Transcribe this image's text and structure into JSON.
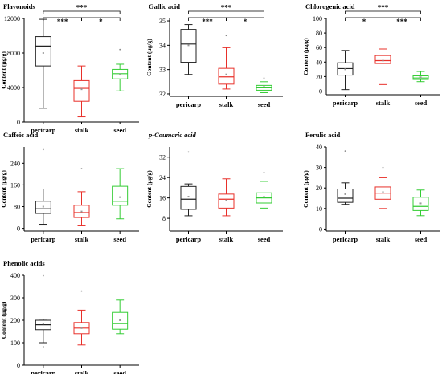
{
  "figure": {
    "y_axis_label": "Content (µg/g)"
  },
  "colors": {
    "pericarp": "#222222",
    "stalk": "#e8302a",
    "seed": "#33cc33"
  },
  "chart_data": [
    {
      "type": "box",
      "title": "Flavonoids",
      "categories": [
        "pericarp",
        "stalk",
        "seed"
      ],
      "ylabel": "Content (µg/g)",
      "ylim": [
        0,
        12000
      ],
      "yticks": [
        0,
        4000,
        8000,
        12000
      ],
      "boxes": [
        {
          "name": "pericarp",
          "min": 1600,
          "q1": 6500,
          "median": 8800,
          "q3": 9900,
          "max": 11900,
          "mean": 8000
        },
        {
          "name": "stalk",
          "min": 600,
          "q1": 2400,
          "median": 3900,
          "q3": 4800,
          "max": 6500,
          "mean": 3800
        },
        {
          "name": "seed",
          "min": 3600,
          "q1": 5000,
          "median": 5600,
          "q3": 6100,
          "max": 6700,
          "mean": 5500,
          "outliers": [
            8400
          ]
        }
      ],
      "significance": [
        {
          "from": "pericarp",
          "to": "seed",
          "label": "***"
        },
        {
          "from": "pericarp",
          "to": "stalk",
          "label": "***"
        },
        {
          "from": "stalk",
          "to": "seed",
          "label": "*"
        }
      ]
    },
    {
      "type": "box",
      "title": "Gallic acid",
      "categories": [
        "pericarp",
        "stalk",
        "seed"
      ],
      "ylabel": "Content (µg/g)",
      "ylim": [
        31.9,
        35.1
      ],
      "yticks": [
        32,
        33,
        34,
        35
      ],
      "boxes": [
        {
          "name": "pericarp",
          "min": 32.8,
          "q1": 33.3,
          "median": 34.05,
          "q3": 34.65,
          "max": 34.85,
          "mean": 34.0
        },
        {
          "name": "stalk",
          "min": 32.2,
          "q1": 32.4,
          "median": 32.7,
          "q3": 33.05,
          "max": 33.9,
          "mean": 32.8,
          "outliers": [
            34.4
          ]
        },
        {
          "name": "seed",
          "min": 32.05,
          "q1": 32.15,
          "median": 32.25,
          "q3": 32.35,
          "max": 32.5,
          "mean": 32.3,
          "outliers": [
            32.65
          ]
        }
      ],
      "significance": [
        {
          "from": "pericarp",
          "to": "seed",
          "label": "***"
        },
        {
          "from": "pericarp",
          "to": "stalk",
          "label": "***"
        },
        {
          "from": "stalk",
          "to": "seed",
          "label": "*"
        }
      ]
    },
    {
      "type": "box",
      "title": "Chlorogenic acid",
      "categories": [
        "pericarp",
        "stalk",
        "seed"
      ],
      "ylabel": "Content (µg/g)",
      "ylim": [
        -5,
        100
      ],
      "yticks": [
        0,
        20,
        40,
        60,
        80,
        100
      ],
      "boxes": [
        {
          "name": "pericarp",
          "min": 2,
          "q1": 22,
          "median": 31,
          "q3": 39,
          "max": 56,
          "mean": 30
        },
        {
          "name": "stalk",
          "min": 9,
          "q1": 38,
          "median": 42,
          "q3": 49,
          "max": 58,
          "mean": 42
        },
        {
          "name": "seed",
          "min": 13,
          "q1": 16,
          "median": 18,
          "q3": 21,
          "max": 27,
          "mean": 19
        }
      ],
      "significance": [
        {
          "from": "pericarp",
          "to": "seed",
          "label": "***"
        },
        {
          "from": "pericarp",
          "to": "stalk",
          "label": "*"
        },
        {
          "from": "stalk",
          "to": "seed",
          "label": "***"
        }
      ]
    },
    {
      "type": "box",
      "title": "Caffeic acid",
      "categories": [
        "pericarp",
        "stalk",
        "seed"
      ],
      "ylabel": "Content (µg/g)",
      "ylim": [
        -10,
        300
      ],
      "yticks": [
        0,
        80,
        160,
        240
      ],
      "boxes": [
        {
          "name": "pericarp",
          "min": 15,
          "q1": 55,
          "median": 72,
          "q3": 100,
          "max": 145,
          "mean": 80,
          "outliers": [
            290
          ]
        },
        {
          "name": "stalk",
          "min": 12,
          "q1": 40,
          "median": 58,
          "q3": 85,
          "max": 135,
          "mean": 62,
          "outliers": [
            220
          ]
        },
        {
          "name": "seed",
          "min": 35,
          "q1": 85,
          "median": 100,
          "q3": 155,
          "max": 220,
          "mean": 115
        }
      ],
      "significance": []
    },
    {
      "type": "box",
      "title": "p-Coumaric acid",
      "categories": [
        "pericarp",
        "stalk",
        "seed"
      ],
      "ylabel": "Content (µg/g)",
      "ylim": [
        3,
        36
      ],
      "yticks": [
        8,
        16,
        24,
        32
      ],
      "boxes": [
        {
          "name": "pericarp",
          "min": 9,
          "q1": 11.5,
          "median": 15.5,
          "q3": 20.5,
          "max": 21.5,
          "mean": 16.5,
          "outliers": [
            34
          ]
        },
        {
          "name": "stalk",
          "min": 9,
          "q1": 12,
          "median": 15.5,
          "q3": 17.5,
          "max": 23.5,
          "mean": 15
        },
        {
          "name": "seed",
          "min": 12,
          "q1": 14,
          "median": 16,
          "q3": 18,
          "max": 22.5,
          "mean": 16.5,
          "outliers": [
            26
          ]
        }
      ],
      "significance": []
    },
    {
      "type": "box",
      "title": "Ferulic acid",
      "categories": [
        "pericarp",
        "stalk",
        "seed"
      ],
      "ylabel": "Content (µg/g)",
      "ylim": [
        -1,
        40
      ],
      "yticks": [
        0,
        10,
        20,
        30,
        40
      ],
      "boxes": [
        {
          "name": "pericarp",
          "min": 12,
          "q1": 13,
          "median": 15,
          "q3": 19.5,
          "max": 22.5,
          "mean": 17,
          "outliers": [
            38
          ]
        },
        {
          "name": "stalk",
          "min": 10,
          "q1": 14.5,
          "median": 17.5,
          "q3": 20.5,
          "max": 25,
          "mean": 18,
          "outliers": [
            30
          ]
        },
        {
          "name": "seed",
          "min": 6.5,
          "q1": 9,
          "median": 11,
          "q3": 15.5,
          "max": 19,
          "mean": 12.5
        }
      ],
      "significance": []
    },
    {
      "type": "box",
      "title": "Phenolic acids",
      "categories": [
        "pericarp",
        "stalk",
        "seed"
      ],
      "ylabel": "Content (µg/g)",
      "ylim": [
        0,
        400
      ],
      "yticks": [
        0,
        100,
        200,
        300,
        400
      ],
      "boxes": [
        {
          "name": "pericarp",
          "min": 100,
          "q1": 158,
          "median": 180,
          "q3": 200,
          "max": 205,
          "mean": 185,
          "outliers": [
            398,
            82
          ]
        },
        {
          "name": "stalk",
          "min": 90,
          "q1": 140,
          "median": 165,
          "q3": 190,
          "max": 245,
          "mean": 165,
          "outliers": [
            330
          ]
        },
        {
          "name": "seed",
          "min": 140,
          "q1": 160,
          "median": 185,
          "q3": 235,
          "max": 290,
          "mean": 200
        }
      ],
      "significance": []
    }
  ]
}
